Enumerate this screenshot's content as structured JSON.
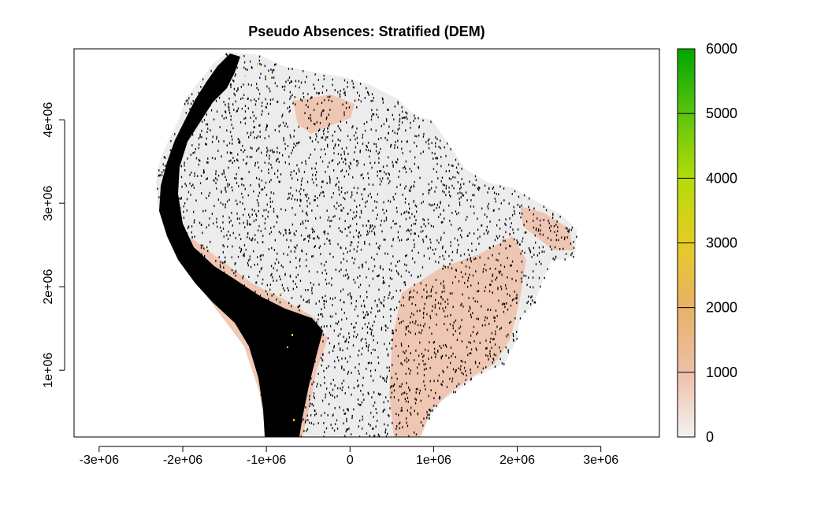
{
  "title": "Pseudo Absences: Stratified (DEM)",
  "map": {
    "x_ticks": [
      -3000000,
      -2000000,
      -1000000,
      0,
      1000000,
      2000000,
      3000000
    ],
    "x_tick_labels": [
      "-3e+06",
      "-2e+06",
      "-1e+06",
      "0",
      "1e+06",
      "2e+06",
      "3e+06"
    ],
    "y_ticks": [
      1000000,
      2000000,
      3000000,
      4000000
    ],
    "y_tick_labels": [
      "1e+06",
      "2e+06",
      "3e+06",
      "4e+06"
    ],
    "xlim": [
      -3300000,
      3700000
    ],
    "ylim": [
      200000,
      4850000
    ]
  },
  "legend": {
    "values": [
      0,
      1000,
      2000,
      3000,
      4000,
      5000,
      6000
    ],
    "labels": [
      "0",
      "1000",
      "2000",
      "3000",
      "4000",
      "5000",
      "6000"
    ],
    "colors": [
      "#f2f2f2",
      "#eebfa8",
      "#e9b167",
      "#e6cb24",
      "#b4dc08",
      "#5bc40f",
      "#00a600"
    ]
  },
  "points_color": "#000000"
}
